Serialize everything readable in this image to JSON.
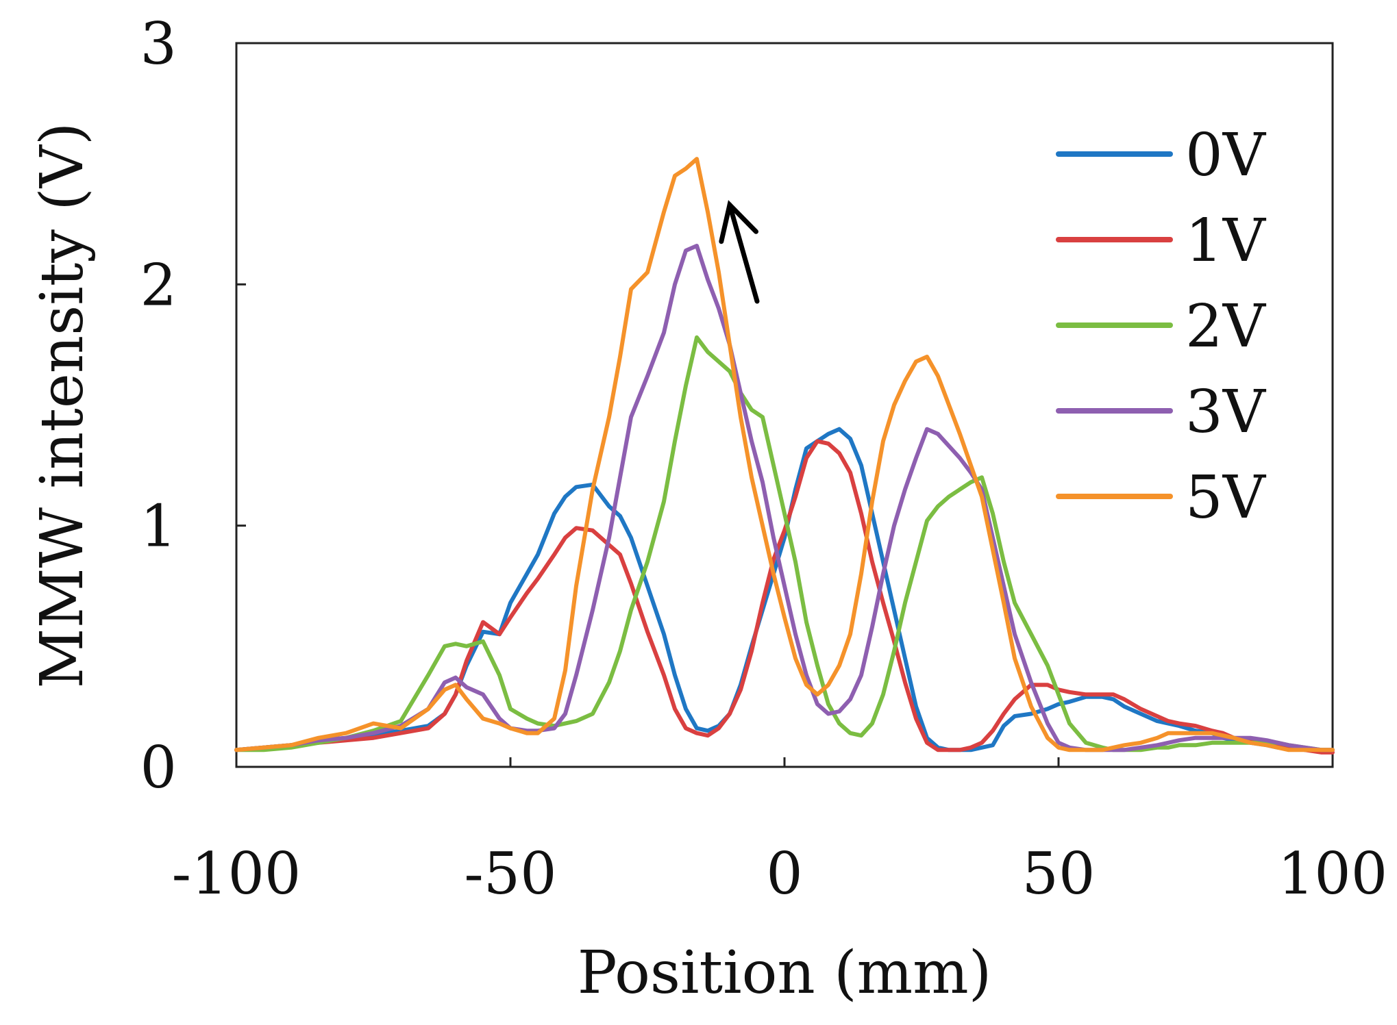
{
  "chart_data": {
    "type": "line",
    "title": "",
    "xlabel": "Position (mm)",
    "ylabel": "MMW intensity (V)",
    "xlim": [
      -100,
      100
    ],
    "ylim": [
      0,
      3
    ],
    "xticks": [
      -100,
      -50,
      0,
      50,
      100
    ],
    "yticks": [
      0,
      1,
      2,
      3
    ],
    "xtick_labels": [
      "-100",
      "-50",
      "0",
      "50",
      "100"
    ],
    "ytick_labels": [
      "0",
      "1",
      "2",
      "3"
    ],
    "legend_position": "top-right",
    "grid": false,
    "annotation": {
      "type": "arrow",
      "description": "points to peak of 5V curve",
      "from": [
        -5,
        1.93
      ],
      "to": [
        -10,
        2.33
      ]
    },
    "x": [
      -100,
      -95,
      -90,
      -85,
      -80,
      -75,
      -70,
      -65,
      -62,
      -60,
      -58,
      -55,
      -52,
      -50,
      -47,
      -45,
      -42,
      -40,
      -38,
      -35,
      -32,
      -30,
      -28,
      -25,
      -22,
      -20,
      -18,
      -16,
      -14,
      -12,
      -10,
      -8,
      -6,
      -4,
      -2,
      0,
      2,
      4,
      6,
      8,
      10,
      12,
      14,
      16,
      18,
      20,
      22,
      24,
      26,
      28,
      30,
      32,
      34,
      36,
      38,
      40,
      42,
      45,
      48,
      50,
      52,
      55,
      58,
      60,
      62,
      65,
      68,
      70,
      72,
      75,
      78,
      80,
      82,
      85,
      88,
      90,
      92,
      95,
      98,
      100
    ],
    "series": [
      {
        "name": "0V",
        "color": "#1f77c4",
        "values": [
          0.07,
          0.08,
          0.09,
          0.11,
          0.12,
          0.13,
          0.15,
          0.17,
          0.22,
          0.3,
          0.42,
          0.56,
          0.55,
          0.68,
          0.8,
          0.88,
          1.05,
          1.12,
          1.16,
          1.17,
          1.08,
          1.04,
          0.95,
          0.75,
          0.55,
          0.38,
          0.24,
          0.16,
          0.15,
          0.17,
          0.22,
          0.34,
          0.5,
          0.65,
          0.8,
          0.95,
          1.15,
          1.32,
          1.35,
          1.38,
          1.4,
          1.36,
          1.25,
          1.05,
          0.85,
          0.65,
          0.45,
          0.25,
          0.12,
          0.08,
          0.07,
          0.07,
          0.07,
          0.08,
          0.09,
          0.17,
          0.21,
          0.22,
          0.24,
          0.26,
          0.27,
          0.29,
          0.29,
          0.28,
          0.25,
          0.22,
          0.19,
          0.18,
          0.17,
          0.15,
          0.14,
          0.12,
          0.11,
          0.1,
          0.09,
          0.08,
          0.08,
          0.07,
          0.07,
          0.07
        ]
      },
      {
        "name": "1V",
        "color": "#d94040",
        "values": [
          0.07,
          0.08,
          0.09,
          0.1,
          0.11,
          0.12,
          0.14,
          0.16,
          0.22,
          0.3,
          0.44,
          0.6,
          0.55,
          0.62,
          0.72,
          0.78,
          0.88,
          0.95,
          0.99,
          0.98,
          0.92,
          0.88,
          0.76,
          0.56,
          0.38,
          0.24,
          0.16,
          0.14,
          0.13,
          0.16,
          0.22,
          0.32,
          0.48,
          0.68,
          0.86,
          0.98,
          1.12,
          1.28,
          1.35,
          1.34,
          1.3,
          1.22,
          1.05,
          0.85,
          0.68,
          0.52,
          0.35,
          0.2,
          0.1,
          0.07,
          0.07,
          0.07,
          0.08,
          0.1,
          0.15,
          0.22,
          0.28,
          0.34,
          0.34,
          0.32,
          0.31,
          0.3,
          0.3,
          0.3,
          0.28,
          0.24,
          0.21,
          0.19,
          0.18,
          0.17,
          0.15,
          0.14,
          0.12,
          0.11,
          0.1,
          0.09,
          0.08,
          0.07,
          0.06,
          0.06
        ]
      },
      {
        "name": "2V",
        "color": "#7bbd42",
        "values": [
          0.07,
          0.07,
          0.08,
          0.1,
          0.12,
          0.15,
          0.19,
          0.38,
          0.5,
          0.51,
          0.5,
          0.52,
          0.38,
          0.24,
          0.2,
          0.18,
          0.17,
          0.18,
          0.19,
          0.22,
          0.35,
          0.48,
          0.65,
          0.85,
          1.1,
          1.35,
          1.58,
          1.78,
          1.72,
          1.68,
          1.64,
          1.55,
          1.48,
          1.45,
          1.25,
          1.05,
          0.85,
          0.6,
          0.42,
          0.26,
          0.18,
          0.14,
          0.13,
          0.18,
          0.3,
          0.48,
          0.68,
          0.85,
          1.02,
          1.08,
          1.12,
          1.15,
          1.18,
          1.2,
          1.05,
          0.85,
          0.68,
          0.55,
          0.42,
          0.3,
          0.18,
          0.1,
          0.08,
          0.07,
          0.07,
          0.07,
          0.08,
          0.08,
          0.09,
          0.09,
          0.1,
          0.1,
          0.1,
          0.1,
          0.1,
          0.1,
          0.09,
          0.08,
          0.07,
          0.07
        ]
      },
      {
        "name": "3V",
        "color": "#8e5fb0",
        "values": [
          0.07,
          0.08,
          0.09,
          0.11,
          0.12,
          0.14,
          0.17,
          0.24,
          0.35,
          0.37,
          0.33,
          0.3,
          0.2,
          0.16,
          0.15,
          0.15,
          0.16,
          0.22,
          0.38,
          0.65,
          0.95,
          1.2,
          1.45,
          1.62,
          1.8,
          2.0,
          2.14,
          2.16,
          2.02,
          1.9,
          1.75,
          1.55,
          1.35,
          1.18,
          0.95,
          0.75,
          0.55,
          0.38,
          0.26,
          0.22,
          0.23,
          0.28,
          0.38,
          0.58,
          0.8,
          1.0,
          1.15,
          1.28,
          1.4,
          1.38,
          1.33,
          1.28,
          1.22,
          1.15,
          0.95,
          0.75,
          0.55,
          0.35,
          0.18,
          0.1,
          0.08,
          0.07,
          0.07,
          0.07,
          0.07,
          0.08,
          0.09,
          0.1,
          0.11,
          0.12,
          0.12,
          0.12,
          0.12,
          0.12,
          0.11,
          0.1,
          0.09,
          0.08,
          0.07,
          0.07
        ]
      },
      {
        "name": "5V",
        "color": "#f5922a",
        "values": [
          0.07,
          0.08,
          0.09,
          0.12,
          0.14,
          0.18,
          0.16,
          0.24,
          0.32,
          0.34,
          0.28,
          0.2,
          0.18,
          0.16,
          0.14,
          0.14,
          0.2,
          0.4,
          0.75,
          1.15,
          1.45,
          1.7,
          1.98,
          2.05,
          2.3,
          2.45,
          2.48,
          2.52,
          2.3,
          2.05,
          1.75,
          1.45,
          1.2,
          1.0,
          0.8,
          0.62,
          0.45,
          0.34,
          0.3,
          0.34,
          0.42,
          0.55,
          0.8,
          1.1,
          1.35,
          1.5,
          1.6,
          1.68,
          1.7,
          1.62,
          1.5,
          1.38,
          1.25,
          1.12,
          0.9,
          0.68,
          0.45,
          0.25,
          0.12,
          0.08,
          0.07,
          0.07,
          0.07,
          0.08,
          0.09,
          0.1,
          0.12,
          0.14,
          0.14,
          0.14,
          0.14,
          0.13,
          0.12,
          0.1,
          0.09,
          0.08,
          0.07,
          0.07,
          0.07,
          0.07
        ]
      }
    ]
  }
}
